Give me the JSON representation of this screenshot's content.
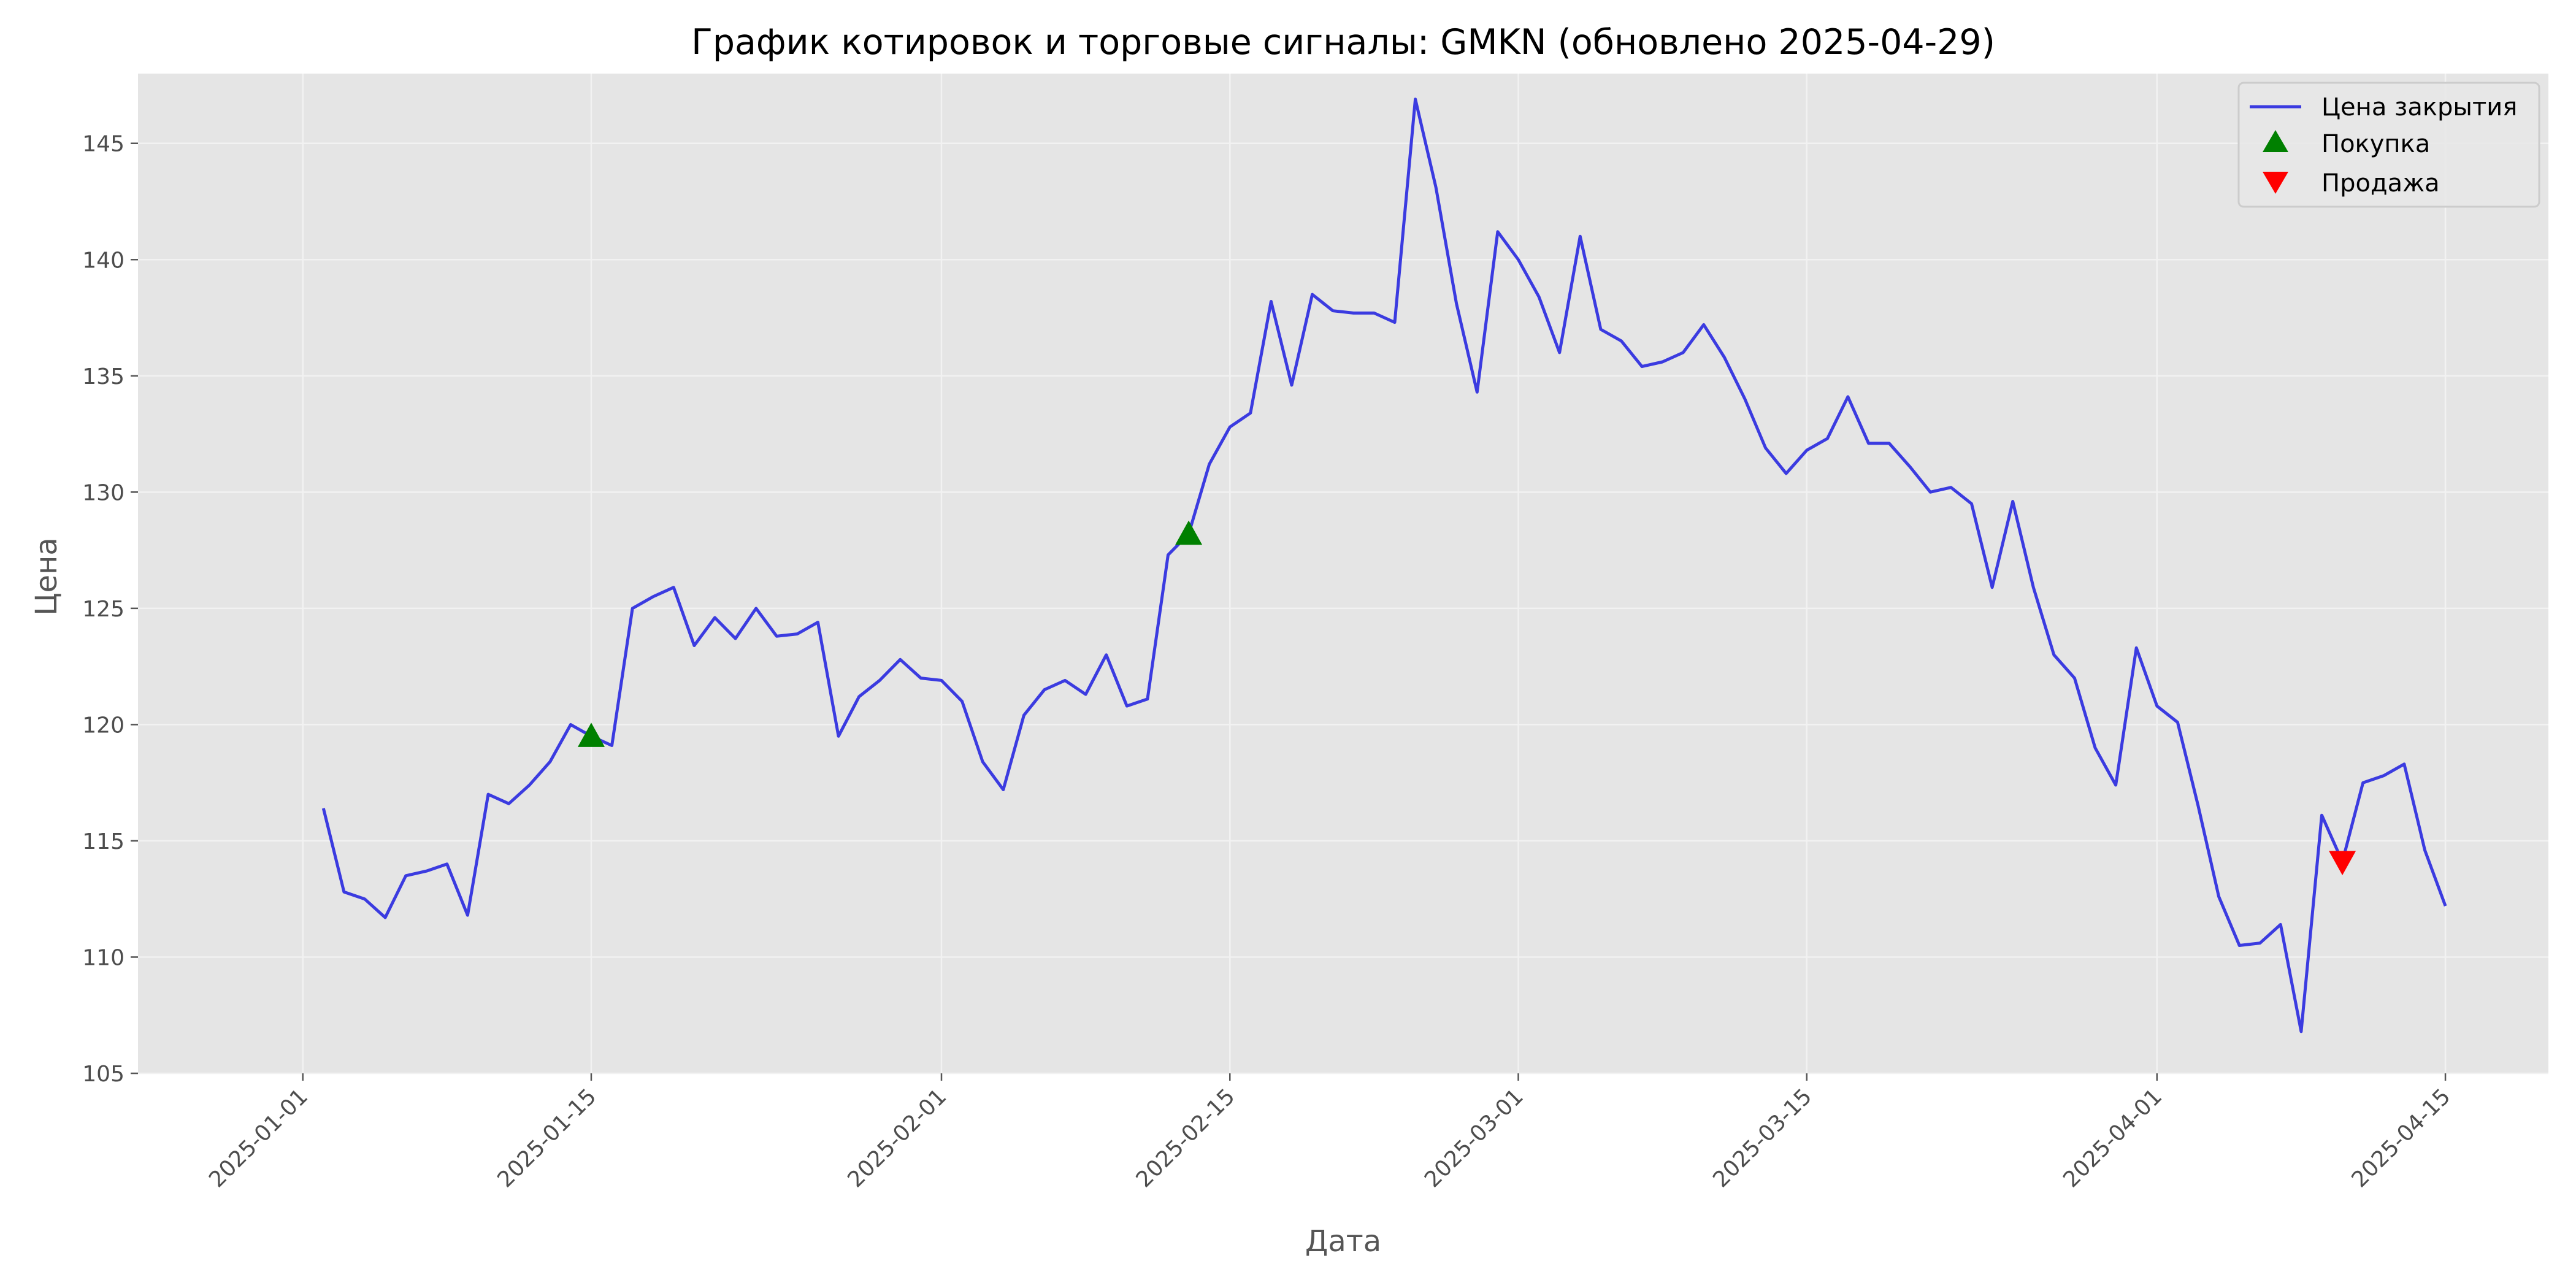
{
  "chart_data": {
    "type": "line",
    "title": "График котировок и торговые сигналы: GMKN (обновлено 2025-04-29)",
    "xlabel": "Дата",
    "ylabel": "Цена",
    "ylim": [
      105,
      148
    ],
    "xlim": [
      "2024-12-24",
      "2025-04-20"
    ],
    "grid": true,
    "legend_position": "top-right",
    "x_ticks": [
      "2025-01-01",
      "2025-01-15",
      "2025-02-01",
      "2025-02-15",
      "2025-03-01",
      "2025-03-15",
      "2025-04-01",
      "2025-04-15"
    ],
    "y_ticks": [
      105,
      110,
      115,
      120,
      125,
      130,
      135,
      140,
      145
    ],
    "colors": {
      "line": "#3b3be0",
      "buy": "#008000",
      "sell": "#ff0000",
      "plot_bg": "#e5e5e5",
      "grid": "#f2f2f2"
    },
    "series": [
      {
        "name": "Цена закрытия",
        "x": [
          "2025-01-02",
          "2025-01-03",
          "2025-01-04",
          "2025-01-05",
          "2025-01-06",
          "2025-01-07",
          "2025-01-08",
          "2025-01-09",
          "2025-01-10",
          "2025-01-11",
          "2025-01-12",
          "2025-01-13",
          "2025-01-14",
          "2025-01-15",
          "2025-01-16",
          "2025-01-17",
          "2025-01-18",
          "2025-01-19",
          "2025-01-20",
          "2025-01-21",
          "2025-01-22",
          "2025-01-23",
          "2025-01-24",
          "2025-01-25",
          "2025-01-26",
          "2025-01-27",
          "2025-01-28",
          "2025-01-29",
          "2025-01-30",
          "2025-01-31",
          "2025-02-01",
          "2025-02-02",
          "2025-02-03",
          "2025-02-04",
          "2025-02-05",
          "2025-02-06",
          "2025-02-07",
          "2025-02-08",
          "2025-02-09",
          "2025-02-10",
          "2025-02-11",
          "2025-02-12",
          "2025-02-13",
          "2025-02-14",
          "2025-02-15",
          "2025-02-16",
          "2025-02-17",
          "2025-02-18",
          "2025-02-19",
          "2025-02-20",
          "2025-02-21",
          "2025-02-22",
          "2025-02-23",
          "2025-02-24",
          "2025-02-25",
          "2025-02-26",
          "2025-02-27",
          "2025-02-28",
          "2025-03-01",
          "2025-03-02",
          "2025-03-03",
          "2025-03-04",
          "2025-03-05",
          "2025-03-06",
          "2025-03-07",
          "2025-03-08",
          "2025-03-09",
          "2025-03-10",
          "2025-03-11",
          "2025-03-12",
          "2025-03-13",
          "2025-03-14",
          "2025-03-15",
          "2025-03-16",
          "2025-03-17",
          "2025-03-18",
          "2025-03-19",
          "2025-03-20",
          "2025-03-21",
          "2025-03-22",
          "2025-03-23",
          "2025-03-24",
          "2025-03-25",
          "2025-03-26",
          "2025-03-27",
          "2025-03-28",
          "2025-03-29",
          "2025-03-30",
          "2025-03-31",
          "2025-04-01",
          "2025-04-02",
          "2025-04-03",
          "2025-04-04",
          "2025-04-05",
          "2025-04-06",
          "2025-04-07",
          "2025-04-08",
          "2025-04-09",
          "2025-04-10",
          "2025-04-11",
          "2025-04-12",
          "2025-04-13",
          "2025-04-14",
          "2025-04-15"
        ],
        "values": [
          116.4,
          112.8,
          112.5,
          111.7,
          113.5,
          113.7,
          114.0,
          111.8,
          117.0,
          116.6,
          117.4,
          118.4,
          120.0,
          119.5,
          119.1,
          125.0,
          125.5,
          125.9,
          123.4,
          124.6,
          123.7,
          125.0,
          123.8,
          123.9,
          124.4,
          119.5,
          121.2,
          121.9,
          122.8,
          122.0,
          121.9,
          121.0,
          118.4,
          117.2,
          120.4,
          121.5,
          121.9,
          121.3,
          123.0,
          120.8,
          121.1,
          127.3,
          128.2,
          131.2,
          132.8,
          133.4,
          138.2,
          134.6,
          138.5,
          137.8,
          137.7,
          137.7,
          137.3,
          146.9,
          143.1,
          138.1,
          134.3,
          141.2,
          140.0,
          138.4,
          136.0,
          141.0,
          137.0,
          136.5,
          135.4,
          135.6,
          136.0,
          137.2,
          135.8,
          134.0,
          131.9,
          130.8,
          131.8,
          132.3,
          134.1,
          132.1,
          132.1,
          131.1,
          130.0,
          130.2,
          129.5,
          125.9,
          129.6,
          125.9,
          123.0,
          122.0,
          119.0,
          117.4,
          123.3,
          120.8,
          120.1,
          116.5,
          112.6,
          110.5,
          110.6,
          111.4,
          106.8,
          116.1,
          114.1,
          117.5,
          117.8,
          118.3,
          114.6,
          112.2
        ]
      }
    ],
    "signals": [
      {
        "type": "buy",
        "name": "Покупка",
        "x": "2025-01-15",
        "value": 119.5
      },
      {
        "type": "buy",
        "name": "Покупка",
        "x": "2025-02-13",
        "value": 128.2
      },
      {
        "type": "sell",
        "name": "Продажа",
        "x": "2025-04-10",
        "value": 114.1
      }
    ],
    "legend": [
      "Цена закрытия",
      "Покупка",
      "Продажа"
    ]
  }
}
